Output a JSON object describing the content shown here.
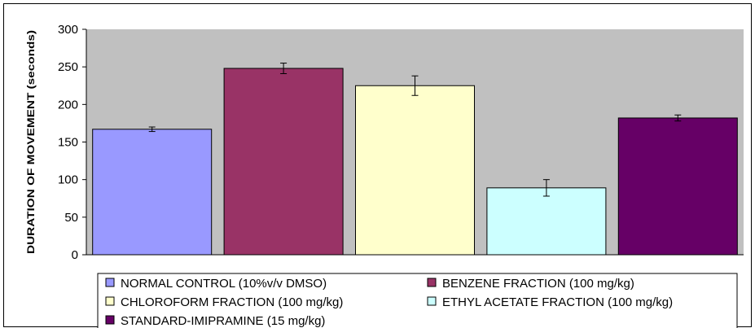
{
  "chart_data": {
    "type": "bar",
    "title": "",
    "xlabel": "",
    "ylabel": "DURATION OF MOVEMENT (seconds)",
    "ylim": [
      0,
      300
    ],
    "yticks": [
      0,
      50,
      100,
      150,
      200,
      250,
      300
    ],
    "grid": false,
    "legend_position": "bottom",
    "series": [
      {
        "name": "NORMAL CONTROL (10%v/v DMSO)",
        "value": 167,
        "error": 3,
        "color": "#9999ff"
      },
      {
        "name": "BENZENE FRACTION (100 mg/kg)",
        "value": 248,
        "error": 7,
        "color": "#993366"
      },
      {
        "name": "CHLOROFORM FRACTION (100 mg/kg)",
        "value": 225,
        "error": 13,
        "color": "#ffffcc"
      },
      {
        "name": "ETHYL ACETATE FRACTION (100 mg/kg)",
        "value": 89,
        "error": 11,
        "color": "#ccffff"
      },
      {
        "name": "STANDARD-IMIPRAMINE (15 mg/kg)",
        "value": 182,
        "error": 4,
        "color": "#660066"
      }
    ]
  },
  "colors": {
    "plot_background": "#c0c0c0",
    "bar_border": "#000000"
  }
}
